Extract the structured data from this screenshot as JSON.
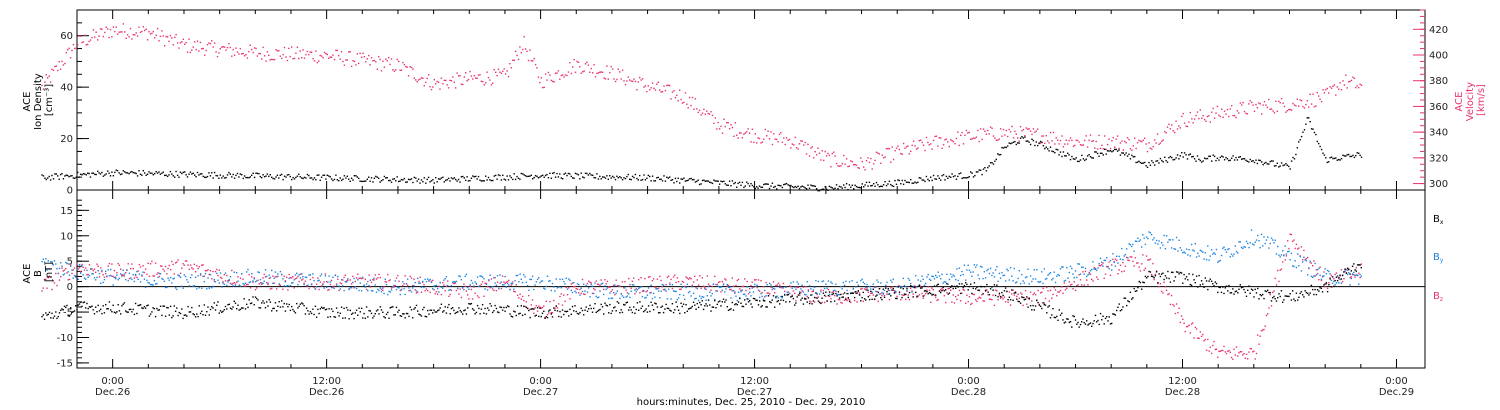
{
  "chart_data": [
    {
      "type": "scatter",
      "panel": "top",
      "ylabel_left": [
        "ACE",
        "Ion Density",
        "[cm⁻³]"
      ],
      "ylabel_right": [
        "ACE",
        "Velocity",
        "[km/s]"
      ],
      "ylim_left": [
        0,
        70
      ],
      "yticks_left": [
        "0",
        "20",
        "40",
        "60"
      ],
      "ylim_right": [
        295,
        435
      ],
      "yticks_right": [
        "300",
        "320",
        "340",
        "360",
        "380",
        "400",
        "420"
      ],
      "colors": {
        "density": "#000000",
        "velocity": "#e8336d"
      },
      "series": [
        {
          "name": "Ion Density",
          "axis": "left",
          "x_hours": [
            -4,
            0,
            6,
            12,
            18,
            24,
            30,
            34,
            36,
            40,
            42,
            44,
            46,
            48,
            49,
            50,
            51,
            52,
            54,
            56,
            58,
            60,
            61,
            62,
            64,
            66,
            67,
            68,
            70
          ],
          "values": [
            5,
            7,
            6,
            5,
            4,
            6,
            5,
            3,
            2,
            1,
            2,
            3,
            5,
            6,
            8,
            17,
            20,
            18,
            12,
            16,
            10,
            14,
            12,
            13,
            12,
            9,
            28,
            12,
            14
          ]
        },
        {
          "name": "Velocity",
          "axis": "right",
          "x_hours": [
            -4,
            -2,
            0,
            2,
            4,
            8,
            12,
            16,
            18,
            20,
            22,
            23,
            24,
            26,
            28,
            30,
            32,
            34,
            36,
            38,
            40,
            42,
            44,
            46,
            48,
            50,
            52,
            54,
            56,
            58,
            60,
            62,
            64,
            66,
            68,
            69,
            70
          ],
          "values": [
            375,
            410,
            420,
            418,
            408,
            402,
            400,
            392,
            378,
            382,
            384,
            410,
            380,
            393,
            386,
            376,
            368,
            346,
            338,
            334,
            320,
            315,
            325,
            332,
            337,
            340,
            338,
            333,
            333,
            331,
            350,
            355,
            360,
            362,
            368,
            380,
            376
          ]
        }
      ]
    },
    {
      "type": "scatter",
      "panel": "bottom",
      "ylabel": [
        "ACE",
        "B",
        "[nT]"
      ],
      "ylim": [
        -16,
        19
      ],
      "yticks": [
        "-15",
        "-10",
        "-5",
        "0",
        "5",
        "10",
        "15"
      ],
      "colors": {
        "Bx": "#000000",
        "By": "#1f85e0",
        "Bz": "#e8336d"
      },
      "series": [
        {
          "name": "Bx",
          "label_main": "B",
          "label_sub": "x",
          "x_hours": [
            -4,
            -2,
            0,
            4,
            8,
            12,
            16,
            20,
            24,
            28,
            32,
            36,
            40,
            44,
            48,
            50,
            52,
            54,
            56,
            58,
            60,
            62,
            64,
            66,
            68,
            70
          ],
          "values": [
            -6,
            -4,
            -4,
            -5,
            -3,
            -5,
            -5,
            -4,
            -5,
            -4,
            -4,
            -3,
            -2,
            -1,
            0,
            -1,
            -4,
            -7,
            -6,
            2,
            2,
            0,
            -1,
            -2,
            0,
            5
          ]
        },
        {
          "name": "By",
          "label_main": "B",
          "label_sub": "y",
          "x_hours": [
            -4,
            -2,
            0,
            4,
            8,
            12,
            16,
            20,
            24,
            28,
            32,
            36,
            40,
            44,
            48,
            52,
            54,
            56,
            58,
            60,
            62,
            64,
            66,
            68,
            70
          ],
          "values": [
            5,
            3,
            2,
            1,
            2,
            1,
            0,
            1,
            1,
            -1,
            -1,
            -1,
            0,
            0,
            3,
            2,
            3,
            5,
            10,
            8,
            6,
            10,
            6,
            2,
            2
          ]
        },
        {
          "name": "Bz",
          "label_main": "B",
          "label_sub": "z",
          "x_hours": [
            -4,
            -2,
            0,
            4,
            8,
            12,
            16,
            20,
            22,
            24,
            26,
            28,
            32,
            36,
            40,
            44,
            48,
            52,
            56,
            58,
            60,
            62,
            64,
            66,
            68,
            70
          ],
          "values": [
            0,
            4,
            3,
            4,
            1,
            1,
            1,
            -1,
            1,
            -5,
            0,
            0,
            1,
            0,
            -2,
            -1,
            -2,
            -2,
            4,
            5,
            -7,
            -13,
            -13,
            10,
            1,
            3
          ]
        }
      ]
    }
  ],
  "x_axis": {
    "tick_labels": [
      {
        "time": "0:00",
        "date": "Dec.26"
      },
      {
        "time": "12:00",
        "date": "Dec.26"
      },
      {
        "time": "0:00",
        "date": "Dec.27"
      },
      {
        "time": "12:00",
        "date": "Dec.27"
      },
      {
        "time": "0:00",
        "date": "Dec.28"
      },
      {
        "time": "12:00",
        "date": "Dec.28"
      },
      {
        "time": "0:00",
        "date": "Dec.29"
      }
    ],
    "tick_hours": [
      0,
      12,
      24,
      36,
      48,
      60,
      72
    ],
    "range_hours": [
      -2,
      73.6
    ],
    "label": "hours:minutes, Dec. 25, 2010 - Dec. 29, 2010"
  }
}
